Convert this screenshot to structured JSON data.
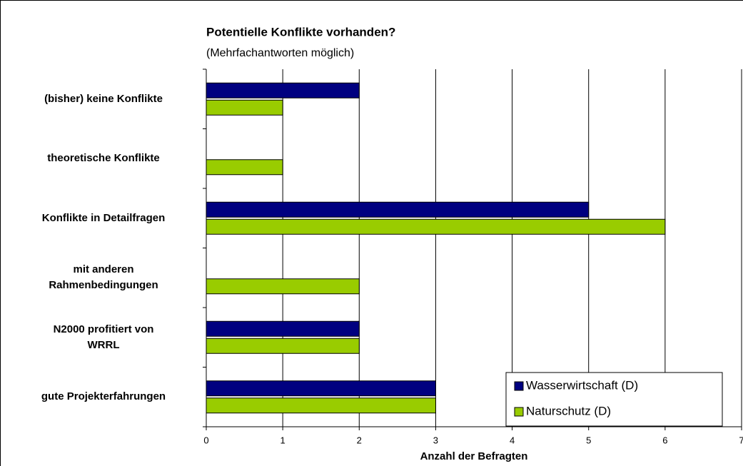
{
  "chart_data": {
    "type": "bar",
    "orientation": "horizontal",
    "title": "Potentielle Konflikte vorhanden?",
    "subtitle": "(Mehrfachantworten möglich)",
    "x_label": "Anzahl der Befragten",
    "categories": [
      "(bisher) keine Konflikte",
      "theoretische Konflikte",
      "Konflikte in Detailfragen",
      "mit anderen\nRahmenbedingungen",
      "N2000 profitiert von\nWRRL",
      "gute Projekterfahrungen"
    ],
    "series": [
      {
        "name": "Wasserwirtschaft (D)",
        "color": "#000080",
        "values": [
          2,
          0,
          5,
          0,
          2,
          3
        ]
      },
      {
        "name": "Naturschutz (D)",
        "color": "#99cc00",
        "values": [
          1,
          1,
          6,
          2,
          2,
          3
        ]
      }
    ],
    "xlim": [
      0,
      7
    ],
    "xticks": [
      0,
      1,
      2,
      3,
      4,
      5,
      6,
      7
    ],
    "grid": true,
    "legend": "lower right"
  }
}
